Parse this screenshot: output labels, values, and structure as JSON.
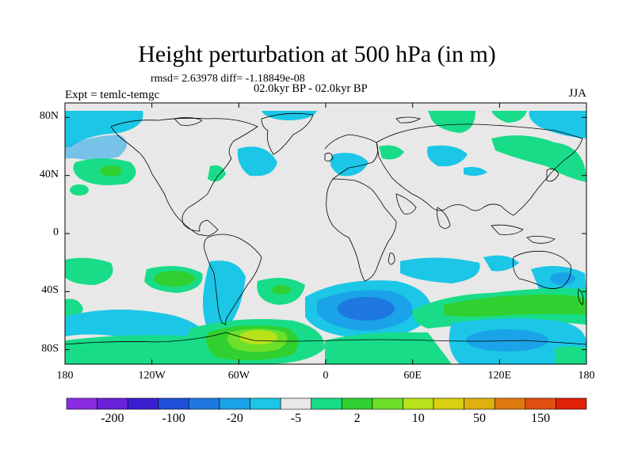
{
  "title": "Height perturbation at 500 hPa (in m)",
  "stats": "rmsd= 2.63978 diff= -1.18849e-08",
  "period": "02.0kyr BP - 02.0kyr BP",
  "experiment": "Expt = temlc-temgc",
  "season": "JJA",
  "axes": {
    "lat_labels": [
      "80N",
      "40N",
      "0",
      "40S",
      "80S"
    ],
    "lat_values": [
      80,
      40,
      0,
      -40,
      -80
    ],
    "lon_labels": [
      "180",
      "120W",
      "60W",
      "0",
      "60E",
      "120E",
      "180"
    ],
    "lon_values": [
      -180,
      -120,
      -60,
      0,
      60,
      120,
      180
    ],
    "lat_range": [
      -90,
      90
    ],
    "lon_range": [
      -180,
      180
    ]
  },
  "colorbar": {
    "labels": [
      "-200",
      "-100",
      "-20",
      "-5",
      "2",
      "10",
      "50",
      "150"
    ],
    "colors": [
      "#8a2be2",
      "#6a22d8",
      "#3a1fd0",
      "#1f4fd8",
      "#1f78e0",
      "#1aa3e8",
      "#1cc6e6",
      "#e8e8e8",
      "#18dc88",
      "#30d030",
      "#6ee02a",
      "#b8e21a",
      "#d8d010",
      "#e0b010",
      "#e07a10",
      "#e05010",
      "#e02008"
    ]
  },
  "legend_note": ""
}
